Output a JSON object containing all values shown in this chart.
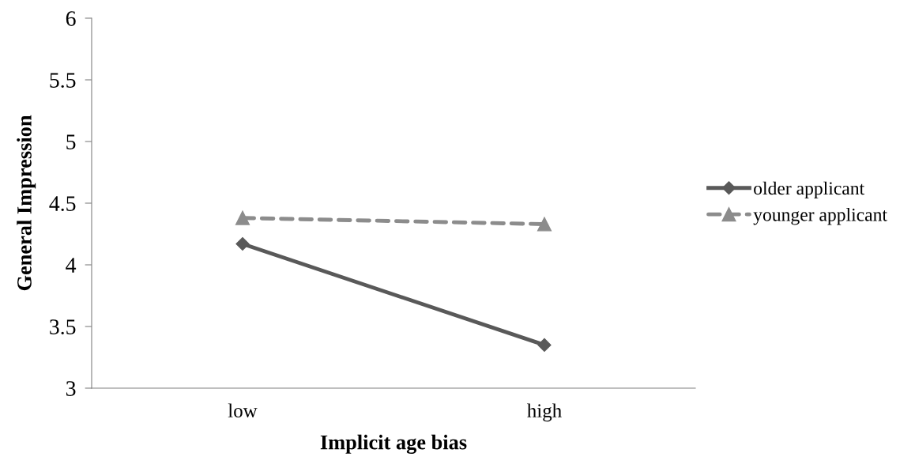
{
  "chart_data": {
    "type": "line",
    "xlabel": "Implicit age bias",
    "ylabel": "General Impression",
    "categories": [
      "low",
      "high"
    ],
    "series": [
      {
        "name": "older applicant",
        "color": "#595959",
        "values": [
          4.17,
          3.35
        ],
        "marker": "diamond",
        "line_style": "solid"
      },
      {
        "name": "younger applicant",
        "color": "#8c8c8c",
        "values": [
          4.38,
          4.33
        ],
        "marker": "triangle",
        "line_style": "dashed"
      }
    ],
    "ylim": [
      3,
      6
    ],
    "yticks": [
      3,
      3.5,
      4,
      4.5,
      5,
      5.5,
      6
    ],
    "grid": false,
    "legend": "right"
  }
}
